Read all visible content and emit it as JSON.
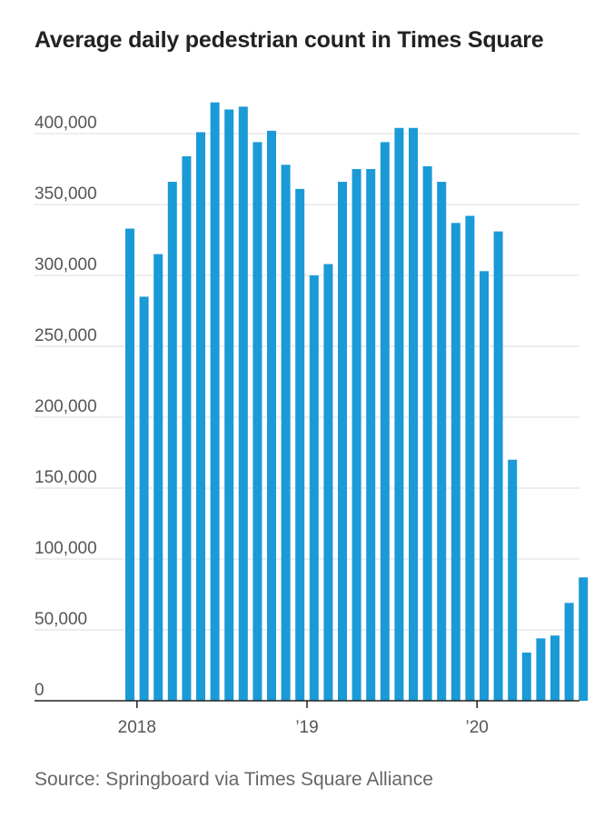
{
  "title": "Average daily pedestrian count in Times Square",
  "source": "Source: Springboard via Times Square Alliance",
  "colors": {
    "bar": "#1a9ad6",
    "grid": "#dddddd",
    "axis": "#222222"
  },
  "chart_data": {
    "type": "bar",
    "title": "Average daily pedestrian count in Times Square",
    "xlabel": "",
    "ylabel": "",
    "ylim": [
      0,
      400000
    ],
    "yticks": [
      0,
      50000,
      100000,
      150000,
      200000,
      250000,
      300000,
      350000,
      400000
    ],
    "ytick_labels": [
      "0",
      "50,000",
      "100,000",
      "150,000",
      "200,000",
      "250,000",
      "300,000",
      "350,000",
      "400,000"
    ],
    "xticks": [
      {
        "label": "2018",
        "category": "2018-01"
      },
      {
        "label": "’19",
        "category": "2019-01"
      },
      {
        "label": "’20",
        "category": "2020-01"
      }
    ],
    "grid": true,
    "categories": [
      "2017-12",
      "2018-01",
      "2018-02",
      "2018-03",
      "2018-04",
      "2018-05",
      "2018-06",
      "2018-07",
      "2018-08",
      "2018-09",
      "2018-10",
      "2018-11",
      "2018-12",
      "2019-01",
      "2019-02",
      "2019-03",
      "2019-04",
      "2019-05",
      "2019-06",
      "2019-07",
      "2019-08",
      "2019-09",
      "2019-10",
      "2019-11",
      "2019-12",
      "2020-01",
      "2020-02",
      "2020-03",
      "2020-04",
      "2020-05",
      "2020-06",
      "2020-07",
      "2020-08"
    ],
    "values": [
      333000,
      285000,
      315000,
      366000,
      384000,
      401000,
      422000,
      417000,
      419000,
      394000,
      402000,
      378000,
      361000,
      300000,
      308000,
      366000,
      375000,
      375000,
      394000,
      404000,
      404000,
      377000,
      366000,
      337000,
      342000,
      303000,
      331000,
      170000,
      34000,
      44000,
      46000,
      69000,
      87000
    ]
  }
}
